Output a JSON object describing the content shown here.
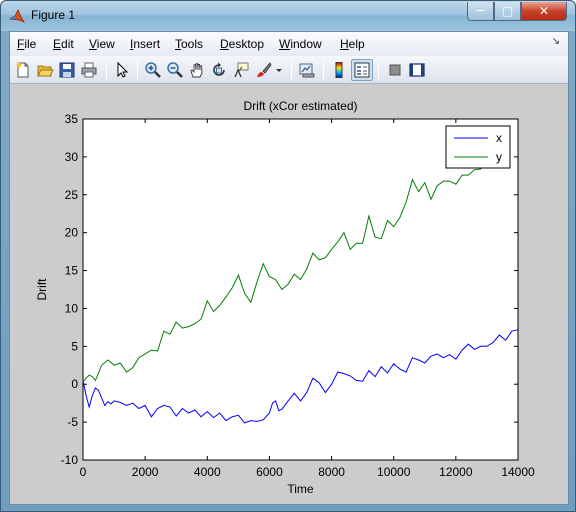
{
  "window": {
    "title": "Figure 1",
    "controls": {
      "minimize": "—",
      "maximize": "□",
      "close": "✕"
    }
  },
  "menu": {
    "items": [
      {
        "label": "File",
        "u": "F",
        "rest": "ile"
      },
      {
        "label": "Edit",
        "u": "E",
        "rest": "dit"
      },
      {
        "label": "View",
        "u": "V",
        "rest": "iew"
      },
      {
        "label": "Insert",
        "u": "I",
        "rest": "nsert"
      },
      {
        "label": "Tools",
        "u": "T",
        "rest": "ools"
      },
      {
        "label": "Desktop",
        "u": "D",
        "rest": "esktop"
      },
      {
        "label": "Window",
        "u": "W",
        "rest": "indow"
      },
      {
        "label": "Help",
        "u": "H",
        "rest": "elp"
      }
    ]
  },
  "toolbar": {
    "icons": [
      "new-figure-icon",
      "open-file-icon",
      "save-icon",
      "print-icon",
      "edit-plot-arrow-icon",
      "zoom-in-icon",
      "zoom-out-icon",
      "pan-hand-icon",
      "rotate-3d-icon",
      "data-cursor-icon",
      "brush-icon",
      "link-plot-icon",
      "colorbar-icon",
      "legend-icon",
      "hide-plot-tools-icon",
      "show-plot-tools-icon"
    ]
  },
  "colors": {
    "series_x": "#0000ff",
    "series_y": "#007f00",
    "axes_bg": "#ffffff",
    "figure_bg": "#cccccc"
  },
  "chart_data": {
    "type": "line",
    "title": "Drift (xCor estimated)",
    "xlabel": "Time",
    "ylabel": "Drift",
    "xlim": [
      0,
      14000
    ],
    "ylim": [
      -10,
      35
    ],
    "xticks": [
      0,
      2000,
      4000,
      6000,
      8000,
      10000,
      12000,
      14000
    ],
    "yticks": [
      -10,
      -5,
      0,
      5,
      10,
      15,
      20,
      25,
      30,
      35
    ],
    "grid": false,
    "legend": {
      "position": "top-right",
      "entries": [
        "x",
        "y"
      ]
    },
    "series": [
      {
        "name": "x",
        "x": [
          0,
          100,
          200,
          300,
          400,
          500,
          600,
          700,
          800,
          900,
          1000,
          1200,
          1400,
          1600,
          1800,
          2000,
          2200,
          2400,
          2600,
          2800,
          3000,
          3200,
          3400,
          3600,
          3800,
          4000,
          4200,
          4400,
          4600,
          4800,
          5000,
          5200,
          5400,
          5600,
          5800,
          6000,
          6100,
          6200,
          6300,
          6400,
          6600,
          6800,
          7000,
          7200,
          7400,
          7600,
          7800,
          8000,
          8200,
          8400,
          8600,
          8800,
          9000,
          9200,
          9400,
          9600,
          9800,
          10000,
          10200,
          10400,
          10600,
          10800,
          11000,
          11200,
          11400,
          11600,
          11800,
          12000,
          12200,
          12400,
          12600,
          12800,
          13000,
          13200,
          13400,
          13600,
          13800,
          14000
        ],
        "y": [
          0.5,
          -1.5,
          -3.0,
          -1.5,
          -0.5,
          -0.8,
          -1.8,
          -2.8,
          -2.3,
          -2.6,
          -2.2,
          -2.4,
          -2.8,
          -2.5,
          -3.2,
          -2.8,
          -4.3,
          -3.2,
          -2.8,
          -3.0,
          -4.2,
          -3.2,
          -3.8,
          -3.4,
          -4.3,
          -3.6,
          -4.4,
          -3.8,
          -4.8,
          -4.3,
          -4.1,
          -5.1,
          -4.8,
          -4.9,
          -4.7,
          -3.8,
          -2.5,
          -2.2,
          -3.5,
          -3.3,
          -2.2,
          -1.2,
          -2.2,
          -1.1,
          0.8,
          0.2,
          -1.1,
          0.0,
          1.6,
          1.4,
          1.1,
          0.5,
          0.4,
          1.8,
          1.0,
          2.3,
          1.5,
          2.7,
          2.0,
          1.6,
          3.5,
          3.2,
          2.8,
          3.7,
          4.0,
          3.5,
          3.9,
          3.3,
          4.5,
          5.3,
          4.6,
          5.0,
          5.0,
          5.5,
          6.5,
          5.8,
          7.0,
          7.2
        ]
      },
      {
        "name": "y",
        "x": [
          0,
          100,
          200,
          300,
          400,
          500,
          600,
          800,
          1000,
          1200,
          1400,
          1600,
          1800,
          2000,
          2200,
          2400,
          2600,
          2800,
          3000,
          3200,
          3400,
          3600,
          3800,
          4000,
          4200,
          4400,
          4600,
          4800,
          5000,
          5200,
          5400,
          5600,
          5800,
          6000,
          6200,
          6400,
          6600,
          6800,
          7000,
          7200,
          7400,
          7600,
          7800,
          8000,
          8200,
          8400,
          8600,
          8800,
          9000,
          9200,
          9400,
          9600,
          9800,
          10000,
          10200,
          10400,
          10600,
          10800,
          11000,
          11200,
          11400,
          11600,
          11800,
          12000,
          12200,
          12400,
          12600,
          12800,
          13000,
          13200,
          13400,
          13500
        ],
        "y": [
          0.3,
          0.8,
          1.2,
          1.0,
          0.5,
          1.5,
          2.5,
          3.2,
          2.5,
          2.8,
          1.6,
          2.2,
          3.5,
          4.0,
          4.5,
          4.4,
          7.0,
          6.6,
          8.2,
          7.4,
          7.6,
          8.0,
          8.6,
          11.0,
          9.6,
          10.4,
          11.5,
          12.7,
          14.4,
          12.0,
          10.8,
          13.5,
          15.9,
          14.2,
          13.8,
          12.5,
          13.2,
          14.5,
          13.8,
          15.2,
          17.3,
          16.4,
          16.7,
          17.8,
          18.8,
          20.0,
          17.8,
          18.6,
          18.6,
          22.2,
          19.4,
          19.2,
          21.6,
          20.8,
          22.0,
          24.0,
          27.0,
          25.4,
          26.6,
          24.4,
          26.2,
          26.8,
          26.8,
          26.4,
          27.6,
          27.6,
          28.3,
          28.4,
          30.1,
          30.6,
          30.8,
          30.9
        ]
      }
    ]
  }
}
